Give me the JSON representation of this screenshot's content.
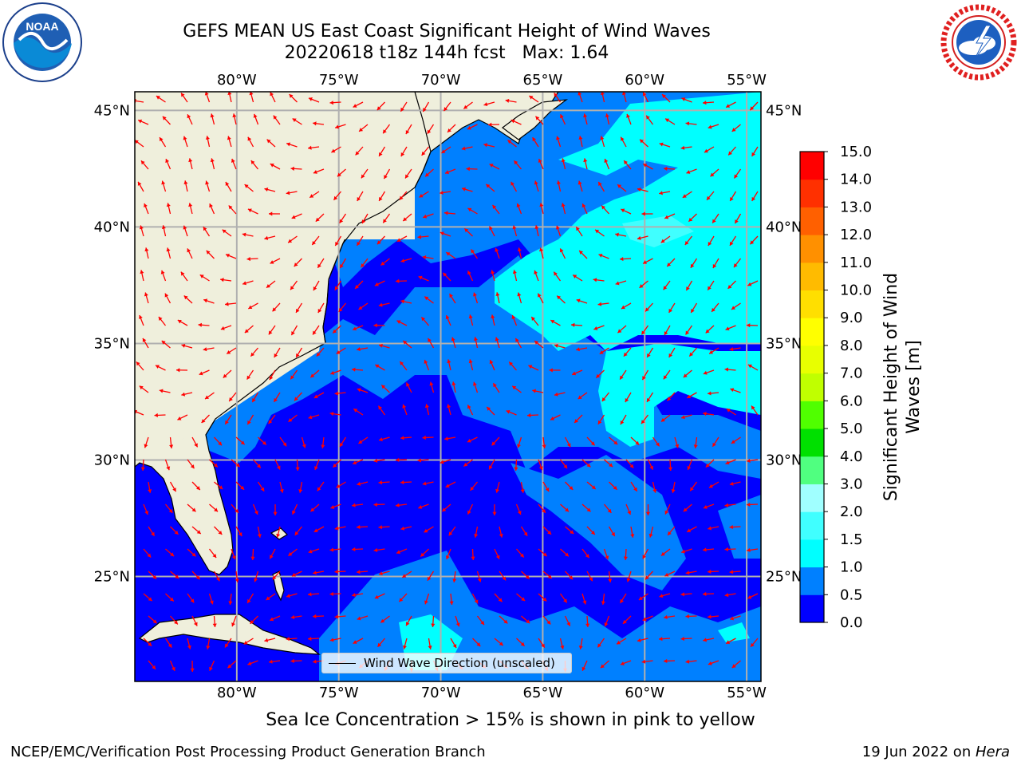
{
  "header": {
    "title_line1": "GEFS MEAN US East Coast Significant Height of Wind Waves",
    "title_line2": "20220618 t18z 144h fcst   Max: 1.64"
  },
  "map": {
    "lon_labels": [
      "80°W",
      "75°W",
      "70°W",
      "65°W",
      "60°W",
      "55°W"
    ],
    "lat_labels": [
      "45°N",
      "40°N",
      "35°N",
      "30°N",
      "25°N"
    ],
    "lon_values": [
      -80,
      -75,
      -70,
      -65,
      -60,
      -55
    ],
    "lat_values": [
      45,
      40,
      35,
      30,
      25
    ],
    "extent": {
      "lon_min": -85,
      "lon_max": -54.3,
      "lat_min": 20.5,
      "lat_max": 45.8
    },
    "land_color": "#efefdc",
    "arrow_color": "#ff0000",
    "legend_label": "Wind Wave Direction (unscaled)"
  },
  "colorbar": {
    "label_line1": "Significant Height of Wind",
    "label_line2": "Waves [m]",
    "ticks": [
      "0.0",
      "0.5",
      "1.0",
      "1.5",
      "2.0",
      "3.0",
      "4.0",
      "5.0",
      "6.0",
      "7.0",
      "8.0",
      "9.0",
      "10.0",
      "11.0",
      "12.0",
      "13.0",
      "14.0",
      "15.0"
    ],
    "colors": [
      "#0000ff",
      "#0080ff",
      "#00ffff",
      "#40ffff",
      "#a0ffff",
      "#50ff80",
      "#00e000",
      "#50ff00",
      "#c0ff00",
      "#e8ff00",
      "#ffff00",
      "#ffdf00",
      "#ffbb00",
      "#ff9000",
      "#ff6000",
      "#ff3000",
      "#ff0000"
    ]
  },
  "chart_data": {
    "type": "heatmap",
    "title": "GEFS MEAN US East Coast Significant Height of Wind Waves",
    "subtitle": "20220618 t18z 144h fcst   Max: 1.64",
    "colorbar_label": "Significant Height of Wind Waves [m]",
    "levels": [
      0.0,
      0.5,
      1.0,
      1.5,
      2.0,
      3.0,
      4.0,
      5.0,
      6.0,
      7.0,
      8.0,
      9.0,
      10.0,
      11.0,
      12.0,
      13.0,
      14.0,
      15.0
    ],
    "xlabel": "",
    "ylabel": "",
    "x_ticks": [
      "80°W",
      "75°W",
      "70°W",
      "65°W",
      "60°W",
      "55°W"
    ],
    "y_ticks": [
      "45°N",
      "40°N",
      "35°N",
      "30°N",
      "25°N"
    ],
    "max_value": 1.64,
    "grid": true,
    "legend": "bottom-center"
  },
  "footer": {
    "note": "Sea Ice Concentration > 15% is shown in pink to yellow",
    "credit_left": "NCEP/EMC/Verification Post Processing Product Generation Branch",
    "credit_date": "19 Jun 2022 on ",
    "credit_machine": "Hera"
  },
  "logos": {
    "noaa_text": "NOAA",
    "nws_text": "NATIONAL WEATHER SERVICE"
  }
}
